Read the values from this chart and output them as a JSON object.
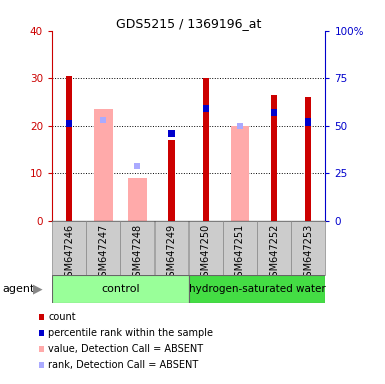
{
  "title": "GDS5215 / 1369196_at",
  "samples": [
    "GSM647246",
    "GSM647247",
    "GSM647248",
    "GSM647249",
    "GSM647250",
    "GSM647251",
    "GSM647252",
    "GSM647253"
  ],
  "count_values": [
    30.5,
    0,
    0,
    17.0,
    30.0,
    0,
    26.5,
    26.0
  ],
  "rank_values_pct": [
    51,
    0,
    0,
    46,
    59,
    0,
    57,
    52
  ],
  "absent_value_values": [
    0,
    23.5,
    9.0,
    0,
    0,
    20.0,
    0,
    0
  ],
  "absent_rank_pct": [
    0,
    53,
    29,
    0,
    0,
    50,
    0,
    0
  ],
  "ylim_left": [
    0,
    40
  ],
  "ylim_right": [
    0,
    100
  ],
  "yticks_left": [
    0,
    10,
    20,
    30,
    40
  ],
  "yticks_right": [
    0,
    25,
    50,
    75,
    100
  ],
  "yticklabels_right": [
    "0",
    "25",
    "50",
    "75",
    "100%"
  ],
  "color_count": "#cc0000",
  "color_rank": "#0000cc",
  "color_absent_value": "#ffaaaa",
  "color_absent_rank": "#aaaaff",
  "legend_items": [
    {
      "color": "#cc0000",
      "label": "count"
    },
    {
      "color": "#0000cc",
      "label": "percentile rank within the sample"
    },
    {
      "color": "#ffaaaa",
      "label": "value, Detection Call = ABSENT"
    },
    {
      "color": "#aaaaff",
      "label": "rank, Detection Call = ABSENT"
    }
  ]
}
